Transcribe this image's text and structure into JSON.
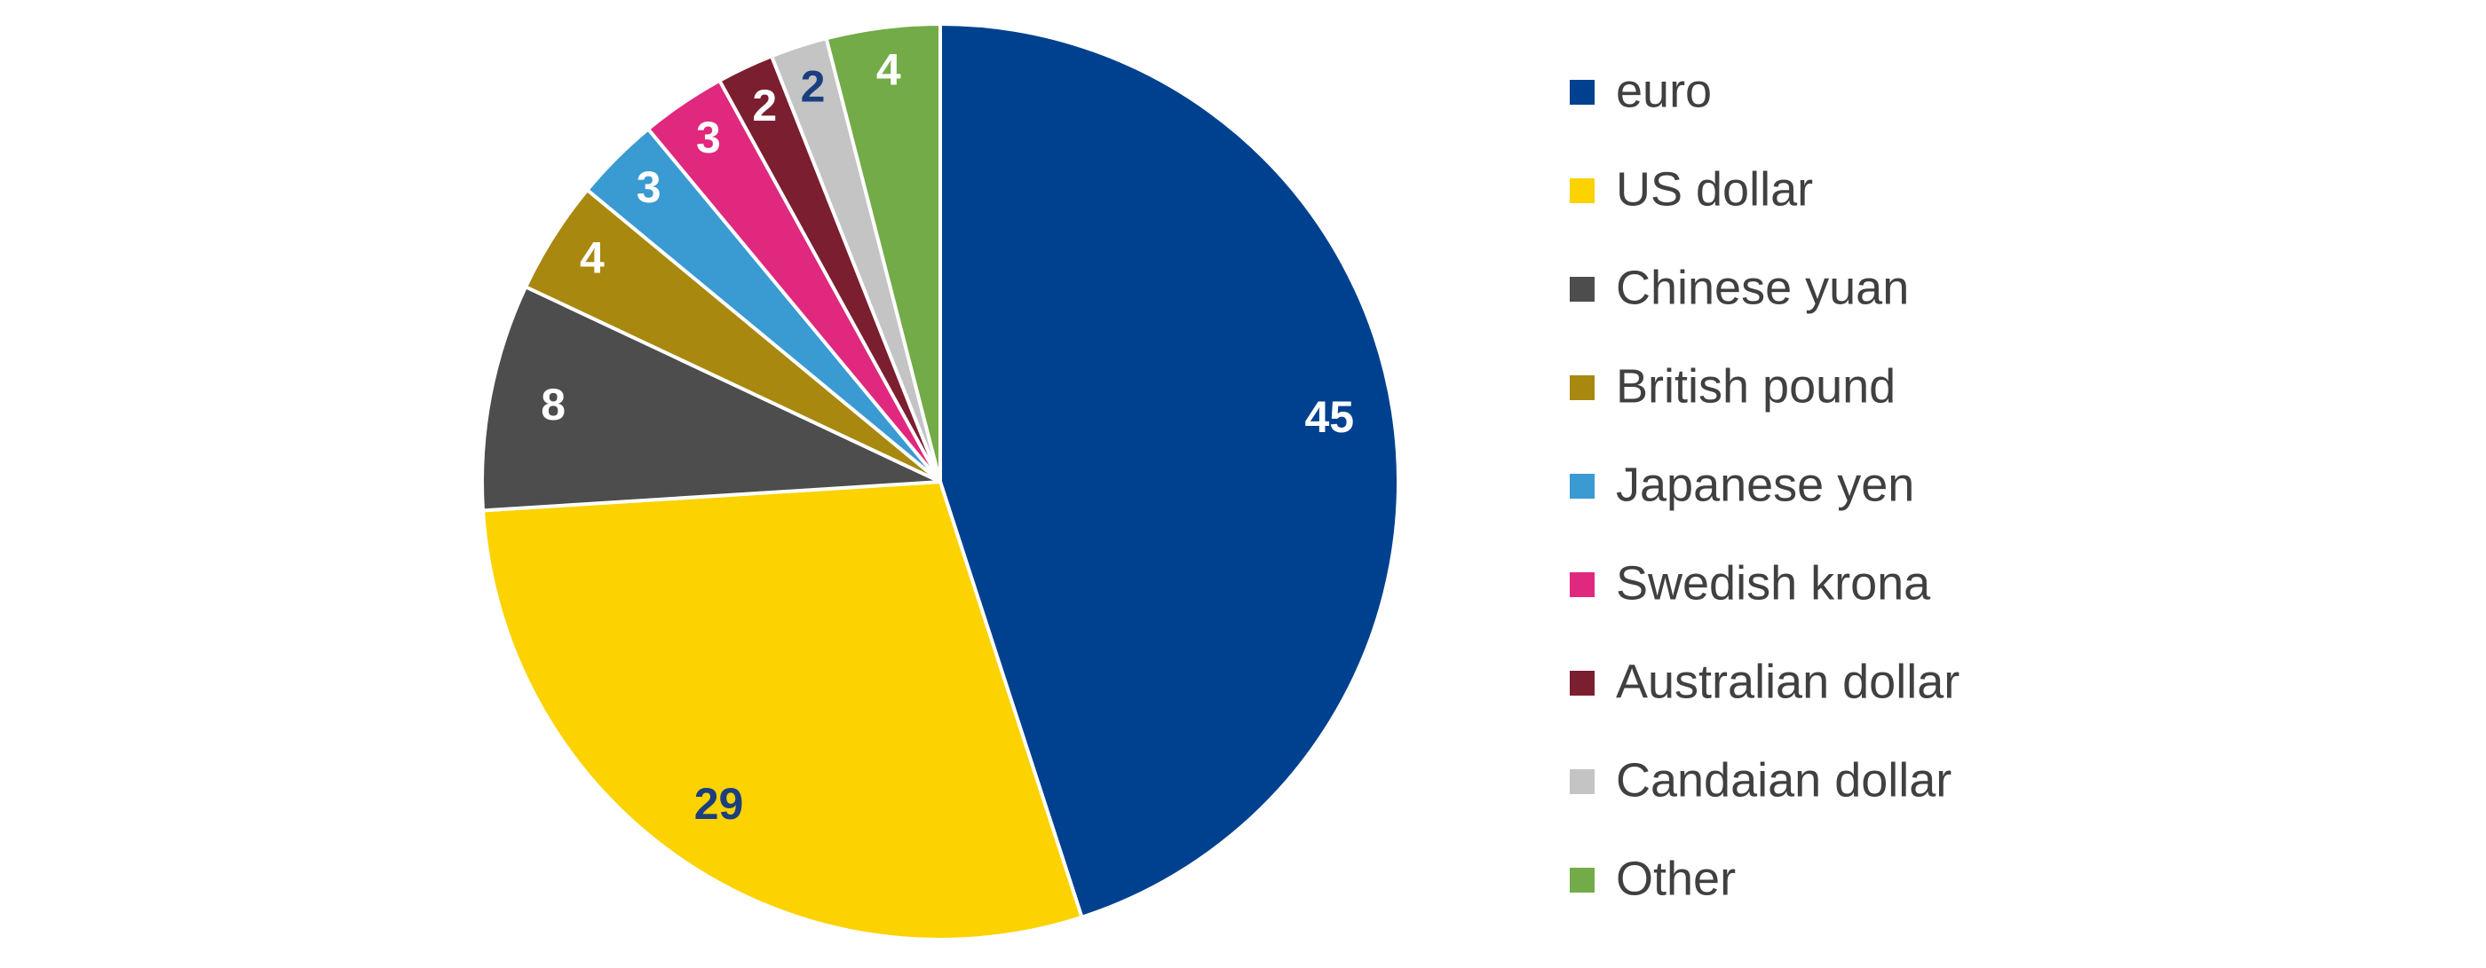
{
  "chart_data": {
    "type": "pie",
    "categories": [
      "euro",
      "US dollar",
      "Chinese yuan",
      "British pound",
      "Japanese yen",
      "Swedish krona",
      "Australian dollar",
      "Candaian dollar",
      "Other"
    ],
    "values": [
      45,
      29,
      8,
      4,
      3,
      3,
      2,
      2,
      4
    ],
    "colors": [
      "#00418f",
      "#fcd200",
      "#4d4d4d",
      "#a8880f",
      "#3a9ad2",
      "#e0287e",
      "#7b1e30",
      "#c4c4c4",
      "#72ab47"
    ],
    "legend": "right"
  }
}
